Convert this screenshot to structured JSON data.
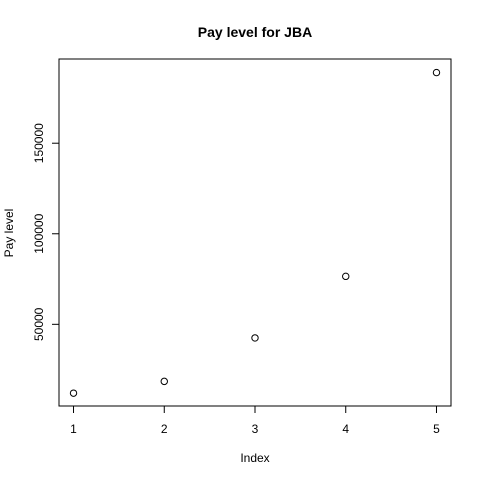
{
  "chart_data": {
    "type": "scatter",
    "title": "Pay level for  JBA",
    "xlabel": "Index",
    "ylabel": "Pay level",
    "x": [
      1,
      2,
      3,
      4,
      5
    ],
    "y": [
      12000,
      18500,
      42500,
      76500,
      189000
    ],
    "xlim": [
      0.84,
      5.16
    ],
    "ylim": [
      4900,
      196500
    ],
    "xticks": [
      1,
      2,
      3,
      4,
      5
    ],
    "yticks": [
      50000,
      100000,
      150000
    ],
    "point_style": "open-circle",
    "grid": false,
    "colors": {
      "points": "#000000",
      "axes": "#000000"
    }
  }
}
